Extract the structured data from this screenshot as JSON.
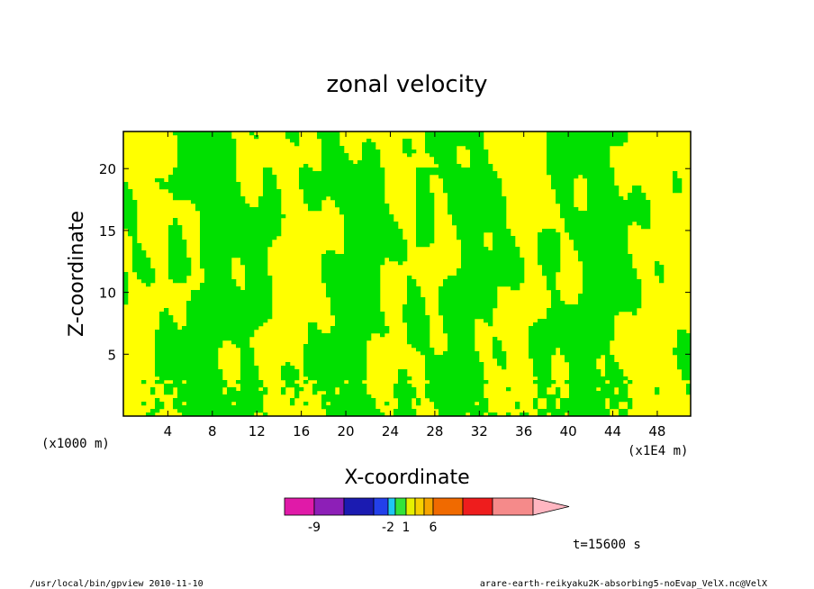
{
  "chart_data": {
    "type": "heatmap",
    "title": "zonal velocity",
    "xlabel": "X-coordinate",
    "ylabel": "Z-coordinate",
    "x_unit": "(x1E4 m)",
    "z_unit": "(x1000 m)",
    "xlim": [
      0,
      51
    ],
    "ylim": [
      0,
      23
    ],
    "x_ticks": [
      4,
      8,
      12,
      16,
      20,
      24,
      28,
      32,
      36,
      40,
      44,
      48
    ],
    "x_tick_labels": [
      "4",
      "8",
      "12",
      "16",
      "20",
      "24",
      "28",
      "32",
      "36",
      "40",
      "44",
      "48"
    ],
    "y_ticks": [
      5,
      10,
      15,
      20
    ],
    "y_tick_labels": [
      "5",
      "10",
      "15",
      "20"
    ],
    "colorbar": {
      "colors": [
        "#e01aa8",
        "#8d1fb7",
        "#1b1bb1",
        "#2340ea",
        "#1fc6f2",
        "#33e33a",
        "#e6f000",
        "#f7d000",
        "#f6a500",
        "#f06a00",
        "#ee1d1d",
        "#f58a8a",
        "#ffb6c1"
      ],
      "labels": [
        "-9",
        "-2",
        "1",
        "6"
      ],
      "label_positions": [
        -9,
        -2,
        1,
        6
      ]
    },
    "time_label": "t=15600 s",
    "footer_left": "/usr/local/bin/gpview  2010-11-10",
    "footer_right": "arare-earth-reikyaku2K-absorbing5-noEvap_VelX.nc@VelX",
    "field_colors": {
      "negative": "#00e000",
      "positive": "#ffff00"
    }
  }
}
